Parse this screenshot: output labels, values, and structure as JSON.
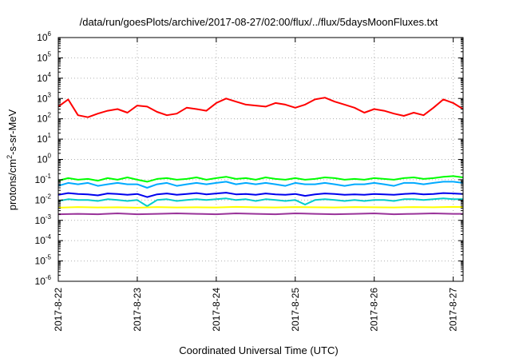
{
  "chart_data": {
    "type": "line",
    "title": "/data/run/goesPlots/archive/2017-08-27/02:00/flux/../flux/5daysMoonFluxes.txt",
    "xlabel": "Coordinated Universal Time (UTC)",
    "ylabel_parts": [
      "protons/cm",
      "2",
      "-s-sr-MeV"
    ],
    "y_scale": "log",
    "ylim": [
      1e-06,
      1000000.0
    ],
    "xlim": [
      "2017-08-22 00:00",
      "2017-08-27 03:00"
    ],
    "x_ticks": [
      "2017-8-22",
      "2017-8-23",
      "2017-8-24",
      "2017-8-25",
      "2017-8-26",
      "2017-8-27"
    ],
    "y_ticks": [
      {
        "base": "10",
        "exp": "-6"
      },
      {
        "base": "10",
        "exp": "-5"
      },
      {
        "base": "10",
        "exp": "-4"
      },
      {
        "base": "10",
        "exp": "-3"
      },
      {
        "base": "10",
        "exp": "-2"
      },
      {
        "base": "10",
        "exp": "-1"
      },
      {
        "base": "10",
        "exp": "0"
      },
      {
        "base": "10",
        "exp": "1"
      },
      {
        "base": "10",
        "exp": "2"
      },
      {
        "base": "10",
        "exp": "3"
      },
      {
        "base": "10",
        "exp": "4"
      },
      {
        "base": "10",
        "exp": "5"
      },
      {
        "base": "10",
        "exp": "6"
      }
    ],
    "grid": true,
    "series": [
      {
        "color": "#ff0000",
        "x": [
          "2017-08-22 00:00",
          "2017-08-22 03:00",
          "2017-08-22 06:00",
          "2017-08-22 09:00",
          "2017-08-22 12:00",
          "2017-08-22 15:00",
          "2017-08-22 18:00",
          "2017-08-22 21:00",
          "2017-08-23 00:00",
          "2017-08-23 03:00",
          "2017-08-23 06:00",
          "2017-08-23 09:00",
          "2017-08-23 12:00",
          "2017-08-23 15:00",
          "2017-08-23 18:00",
          "2017-08-23 21:00",
          "2017-08-24 00:00",
          "2017-08-24 03:00",
          "2017-08-24 06:00",
          "2017-08-24 09:00",
          "2017-08-24 12:00",
          "2017-08-24 15:00",
          "2017-08-24 18:00",
          "2017-08-24 21:00",
          "2017-08-25 00:00",
          "2017-08-25 03:00",
          "2017-08-25 06:00",
          "2017-08-25 09:00",
          "2017-08-25 12:00",
          "2017-08-25 15:00",
          "2017-08-25 18:00",
          "2017-08-25 21:00",
          "2017-08-26 00:00",
          "2017-08-26 03:00",
          "2017-08-26 06:00",
          "2017-08-26 09:00",
          "2017-08-26 12:00",
          "2017-08-26 15:00",
          "2017-08-26 18:00",
          "2017-08-26 21:00",
          "2017-08-27 00:00",
          "2017-08-27 03:00"
        ],
        "y": [
          400,
          900,
          150,
          120,
          180,
          250,
          300,
          200,
          450,
          400,
          220,
          150,
          180,
          350,
          300,
          250,
          600,
          1000,
          700,
          500,
          450,
          400,
          600,
          500,
          350,
          500,
          900,
          1100,
          700,
          500,
          350,
          200,
          300,
          250,
          180,
          140,
          200,
          150,
          350,
          900,
          600,
          300
        ]
      },
      {
        "color": "#00ff00",
        "x": [
          "2017-08-22 00:00",
          "2017-08-22 03:00",
          "2017-08-22 06:00",
          "2017-08-22 09:00",
          "2017-08-22 12:00",
          "2017-08-22 15:00",
          "2017-08-22 18:00",
          "2017-08-22 21:00",
          "2017-08-23 00:00",
          "2017-08-23 03:00",
          "2017-08-23 06:00",
          "2017-08-23 09:00",
          "2017-08-23 12:00",
          "2017-08-23 15:00",
          "2017-08-23 18:00",
          "2017-08-23 21:00",
          "2017-08-24 00:00",
          "2017-08-24 03:00",
          "2017-08-24 06:00",
          "2017-08-24 09:00",
          "2017-08-24 12:00",
          "2017-08-24 15:00",
          "2017-08-24 18:00",
          "2017-08-24 21:00",
          "2017-08-25 00:00",
          "2017-08-25 03:00",
          "2017-08-25 06:00",
          "2017-08-25 09:00",
          "2017-08-25 12:00",
          "2017-08-25 15:00",
          "2017-08-25 18:00",
          "2017-08-25 21:00",
          "2017-08-26 00:00",
          "2017-08-26 03:00",
          "2017-08-26 06:00",
          "2017-08-26 09:00",
          "2017-08-26 12:00",
          "2017-08-26 15:00",
          "2017-08-26 18:00",
          "2017-08-26 21:00",
          "2017-08-27 00:00",
          "2017-08-27 03:00"
        ],
        "y": [
          0.09,
          0.12,
          0.1,
          0.11,
          0.09,
          0.12,
          0.1,
          0.13,
          0.1,
          0.08,
          0.11,
          0.12,
          0.1,
          0.11,
          0.13,
          0.1,
          0.12,
          0.14,
          0.11,
          0.12,
          0.1,
          0.13,
          0.11,
          0.1,
          0.12,
          0.1,
          0.11,
          0.13,
          0.12,
          0.1,
          0.11,
          0.1,
          0.12,
          0.11,
          0.1,
          0.12,
          0.13,
          0.11,
          0.12,
          0.14,
          0.15,
          0.13
        ]
      },
      {
        "color": "#00aaff",
        "x": [
          "2017-08-22 00:00",
          "2017-08-22 03:00",
          "2017-08-22 06:00",
          "2017-08-22 09:00",
          "2017-08-22 12:00",
          "2017-08-22 15:00",
          "2017-08-22 18:00",
          "2017-08-22 21:00",
          "2017-08-23 00:00",
          "2017-08-23 03:00",
          "2017-08-23 06:00",
          "2017-08-23 09:00",
          "2017-08-23 12:00",
          "2017-08-23 15:00",
          "2017-08-23 18:00",
          "2017-08-23 21:00",
          "2017-08-24 00:00",
          "2017-08-24 03:00",
          "2017-08-24 06:00",
          "2017-08-24 09:00",
          "2017-08-24 12:00",
          "2017-08-24 15:00",
          "2017-08-24 18:00",
          "2017-08-24 21:00",
          "2017-08-25 00:00",
          "2017-08-25 03:00",
          "2017-08-25 06:00",
          "2017-08-25 09:00",
          "2017-08-25 12:00",
          "2017-08-25 15:00",
          "2017-08-25 18:00",
          "2017-08-25 21:00",
          "2017-08-26 00:00",
          "2017-08-26 03:00",
          "2017-08-26 06:00",
          "2017-08-26 09:00",
          "2017-08-26 12:00",
          "2017-08-26 15:00",
          "2017-08-26 18:00",
          "2017-08-26 21:00",
          "2017-08-27 00:00",
          "2017-08-27 03:00"
        ],
        "y": [
          0.05,
          0.07,
          0.06,
          0.07,
          0.05,
          0.06,
          0.07,
          0.06,
          0.06,
          0.04,
          0.06,
          0.07,
          0.05,
          0.06,
          0.07,
          0.06,
          0.07,
          0.08,
          0.06,
          0.07,
          0.06,
          0.07,
          0.06,
          0.05,
          0.07,
          0.06,
          0.06,
          0.07,
          0.06,
          0.05,
          0.06,
          0.06,
          0.07,
          0.06,
          0.05,
          0.07,
          0.07,
          0.06,
          0.07,
          0.08,
          0.08,
          0.07
        ]
      },
      {
        "color": "#0000ee",
        "x": [
          "2017-08-22 00:00",
          "2017-08-22 03:00",
          "2017-08-22 06:00",
          "2017-08-22 09:00",
          "2017-08-22 12:00",
          "2017-08-22 15:00",
          "2017-08-22 18:00",
          "2017-08-22 21:00",
          "2017-08-23 00:00",
          "2017-08-23 03:00",
          "2017-08-23 06:00",
          "2017-08-23 09:00",
          "2017-08-23 12:00",
          "2017-08-23 15:00",
          "2017-08-23 18:00",
          "2017-08-23 21:00",
          "2017-08-24 00:00",
          "2017-08-24 03:00",
          "2017-08-24 06:00",
          "2017-08-24 09:00",
          "2017-08-24 12:00",
          "2017-08-24 15:00",
          "2017-08-24 18:00",
          "2017-08-24 21:00",
          "2017-08-25 00:00",
          "2017-08-25 03:00",
          "2017-08-25 06:00",
          "2017-08-25 09:00",
          "2017-08-25 12:00",
          "2017-08-25 15:00",
          "2017-08-25 18:00",
          "2017-08-25 21:00",
          "2017-08-26 00:00",
          "2017-08-26 03:00",
          "2017-08-26 06:00",
          "2017-08-26 09:00",
          "2017-08-26 12:00",
          "2017-08-26 15:00",
          "2017-08-26 18:00",
          "2017-08-26 21:00",
          "2017-08-27 00:00",
          "2017-08-27 03:00"
        ],
        "y": [
          0.018,
          0.022,
          0.02,
          0.019,
          0.017,
          0.021,
          0.02,
          0.018,
          0.02,
          0.014,
          0.019,
          0.021,
          0.018,
          0.02,
          0.022,
          0.019,
          0.021,
          0.023,
          0.019,
          0.02,
          0.018,
          0.021,
          0.019,
          0.018,
          0.02,
          0.016,
          0.019,
          0.021,
          0.02,
          0.018,
          0.019,
          0.018,
          0.02,
          0.019,
          0.018,
          0.02,
          0.021,
          0.019,
          0.02,
          0.022,
          0.021,
          0.02
        ]
      },
      {
        "color": "#00cccc",
        "x": [
          "2017-08-22 00:00",
          "2017-08-22 03:00",
          "2017-08-22 06:00",
          "2017-08-22 09:00",
          "2017-08-22 12:00",
          "2017-08-22 15:00",
          "2017-08-22 18:00",
          "2017-08-22 21:00",
          "2017-08-23 00:00",
          "2017-08-23 03:00",
          "2017-08-23 06:00",
          "2017-08-23 09:00",
          "2017-08-23 12:00",
          "2017-08-23 15:00",
          "2017-08-23 18:00",
          "2017-08-23 21:00",
          "2017-08-24 00:00",
          "2017-08-24 03:00",
          "2017-08-24 06:00",
          "2017-08-24 09:00",
          "2017-08-24 12:00",
          "2017-08-24 15:00",
          "2017-08-24 18:00",
          "2017-08-24 21:00",
          "2017-08-25 00:00",
          "2017-08-25 03:00",
          "2017-08-25 06:00",
          "2017-08-25 09:00",
          "2017-08-25 12:00",
          "2017-08-25 15:00",
          "2017-08-25 18:00",
          "2017-08-25 21:00",
          "2017-08-26 00:00",
          "2017-08-26 03:00",
          "2017-08-26 06:00",
          "2017-08-26 09:00",
          "2017-08-26 12:00",
          "2017-08-26 15:00",
          "2017-08-26 18:00",
          "2017-08-26 21:00",
          "2017-08-27 00:00",
          "2017-08-27 03:00"
        ],
        "y": [
          0.009,
          0.011,
          0.01,
          0.01,
          0.009,
          0.011,
          0.01,
          0.009,
          0.01,
          0.005,
          0.01,
          0.011,
          0.009,
          0.01,
          0.011,
          0.01,
          0.011,
          0.012,
          0.01,
          0.011,
          0.009,
          0.011,
          0.01,
          0.009,
          0.01,
          0.006,
          0.01,
          0.011,
          0.01,
          0.009,
          0.01,
          0.009,
          0.01,
          0.01,
          0.009,
          0.011,
          0.011,
          0.01,
          0.011,
          0.012,
          0.011,
          0.011
        ]
      },
      {
        "color": "#ffff00",
        "x": [
          "2017-08-22 00:00",
          "2017-08-22 06:00",
          "2017-08-22 12:00",
          "2017-08-22 18:00",
          "2017-08-23 00:00",
          "2017-08-23 06:00",
          "2017-08-23 12:00",
          "2017-08-23 18:00",
          "2017-08-24 00:00",
          "2017-08-24 06:00",
          "2017-08-24 12:00",
          "2017-08-24 18:00",
          "2017-08-25 00:00",
          "2017-08-25 06:00",
          "2017-08-25 12:00",
          "2017-08-25 18:00",
          "2017-08-26 00:00",
          "2017-08-26 06:00",
          "2017-08-26 12:00",
          "2017-08-26 18:00",
          "2017-08-27 00:00",
          "2017-08-27 03:00"
        ],
        "y": [
          0.0042,
          0.0045,
          0.0043,
          0.0044,
          0.0042,
          0.0045,
          0.0043,
          0.0044,
          0.0043,
          0.0046,
          0.0044,
          0.0043,
          0.0045,
          0.0044,
          0.0043,
          0.0045,
          0.0044,
          0.0043,
          0.0045,
          0.0044,
          0.0046,
          0.0045
        ]
      },
      {
        "color": "#993399",
        "x": [
          "2017-08-22 00:00",
          "2017-08-22 06:00",
          "2017-08-22 12:00",
          "2017-08-22 18:00",
          "2017-08-23 00:00",
          "2017-08-23 06:00",
          "2017-08-23 12:00",
          "2017-08-23 18:00",
          "2017-08-24 00:00",
          "2017-08-24 06:00",
          "2017-08-24 12:00",
          "2017-08-24 18:00",
          "2017-08-25 00:00",
          "2017-08-25 06:00",
          "2017-08-25 12:00",
          "2017-08-25 18:00",
          "2017-08-26 00:00",
          "2017-08-26 06:00",
          "2017-08-26 12:00",
          "2017-08-26 18:00",
          "2017-08-27 00:00",
          "2017-08-27 03:00"
        ],
        "y": [
          0.002,
          0.0021,
          0.002,
          0.0022,
          0.002,
          0.0021,
          0.0022,
          0.0021,
          0.002,
          0.0022,
          0.0021,
          0.002,
          0.0022,
          0.0021,
          0.002,
          0.0021,
          0.0022,
          0.002,
          0.0021,
          0.0022,
          0.0021,
          0.0021
        ]
      }
    ]
  }
}
